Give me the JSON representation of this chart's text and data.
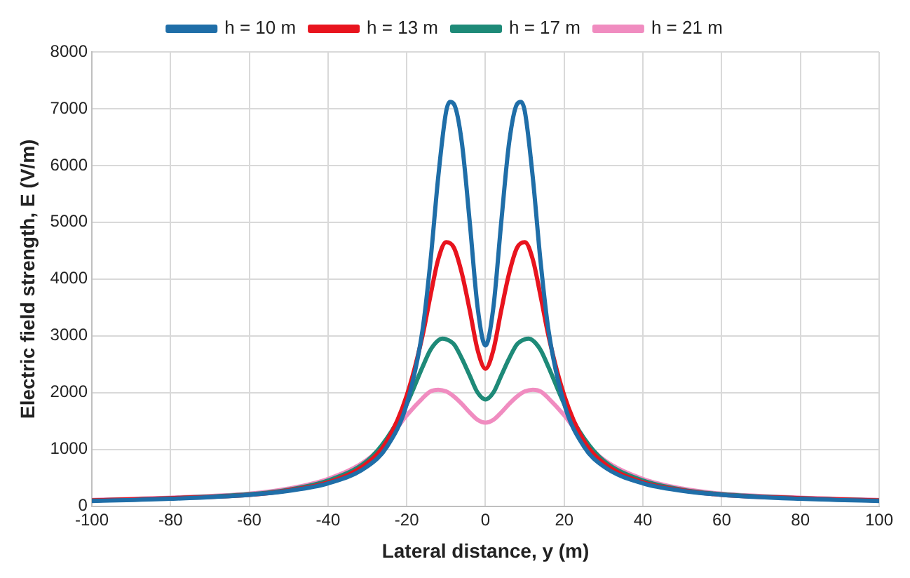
{
  "chart_data": {
    "type": "line",
    "xlabel": "Lateral distance, y (m)",
    "ylabel": "Electric field strength, E (V/m)",
    "xlim": [
      -100,
      100
    ],
    "xticks": [
      -100,
      -80,
      -60,
      -40,
      -20,
      0,
      20,
      40,
      60,
      80,
      100
    ],
    "ylim": [
      0,
      8000
    ],
    "yticks": [
      0,
      1000,
      2000,
      3000,
      4000,
      5000,
      6000,
      7000,
      8000
    ],
    "grid": true,
    "legend": "top",
    "marker": "none",
    "line_style": "solid",
    "series": [
      {
        "name": "h = 10 m",
        "color": "#1f6ea8",
        "x": [
          -100,
          -80,
          -60,
          -50,
          -40,
          -30,
          -25,
          -20,
          -16,
          -14,
          -12,
          -10,
          -9,
          -8,
          -6,
          -4,
          -2,
          0,
          2,
          4,
          6,
          8,
          9,
          10,
          12,
          14,
          16,
          20,
          25,
          30,
          40,
          50,
          60,
          80,
          100
        ],
        "values": [
          90,
          130,
          200,
          270,
          400,
          700,
          1050,
          1800,
          3100,
          4300,
          5800,
          6950,
          7120,
          7080,
          6400,
          5000,
          3500,
          2830,
          3500,
          5000,
          6400,
          7080,
          7120,
          6950,
          5800,
          4300,
          3100,
          1800,
          1050,
          700,
          400,
          270,
          200,
          130,
          90
        ]
      },
      {
        "name": "h = 13 m",
        "color": "#e8141e",
        "x": [
          -100,
          -80,
          -60,
          -50,
          -40,
          -30,
          -25,
          -20,
          -16,
          -14,
          -12,
          -10,
          -8,
          -6,
          -4,
          -2,
          0,
          2,
          4,
          6,
          8,
          10,
          12,
          14,
          16,
          20,
          25,
          30,
          40,
          50,
          60,
          80,
          100
        ],
        "values": [
          100,
          140,
          200,
          280,
          420,
          760,
          1150,
          1950,
          3000,
          3700,
          4350,
          4650,
          4550,
          4100,
          3450,
          2750,
          2420,
          2750,
          3450,
          4100,
          4550,
          4650,
          4350,
          3700,
          3000,
          1950,
          1150,
          760,
          420,
          280,
          200,
          140,
          100
        ]
      },
      {
        "name": "h = 17 m",
        "color": "#1e8a78",
        "x": [
          -100,
          -80,
          -60,
          -50,
          -40,
          -30,
          -25,
          -20,
          -16,
          -14,
          -12,
          -11,
          -10,
          -8,
          -6,
          -4,
          -2,
          0,
          2,
          4,
          6,
          8,
          10,
          11,
          12,
          14,
          16,
          20,
          25,
          30,
          40,
          50,
          60,
          80,
          100
        ],
        "values": [
          100,
          140,
          210,
          290,
          450,
          800,
          1200,
          1800,
          2450,
          2750,
          2920,
          2950,
          2940,
          2850,
          2600,
          2300,
          2000,
          1880,
          2000,
          2300,
          2600,
          2850,
          2940,
          2950,
          2920,
          2750,
          2450,
          1800,
          1200,
          800,
          450,
          290,
          210,
          140,
          100
        ]
      },
      {
        "name": "h = 21 m",
        "color": "#f08cc0",
        "x": [
          -100,
          -80,
          -60,
          -50,
          -40,
          -30,
          -25,
          -20,
          -16,
          -14,
          -12,
          -10,
          -8,
          -6,
          -4,
          -2,
          0,
          2,
          4,
          6,
          8,
          10,
          12,
          14,
          16,
          20,
          25,
          30,
          40,
          50,
          60,
          80,
          100
        ],
        "values": [
          110,
          150,
          220,
          310,
          480,
          820,
          1150,
          1600,
          1900,
          2020,
          2050,
          2020,
          1930,
          1800,
          1650,
          1520,
          1470,
          1520,
          1650,
          1800,
          1930,
          2020,
          2050,
          2020,
          1900,
          1600,
          1150,
          820,
          480,
          310,
          220,
          150,
          110
        ]
      }
    ]
  }
}
